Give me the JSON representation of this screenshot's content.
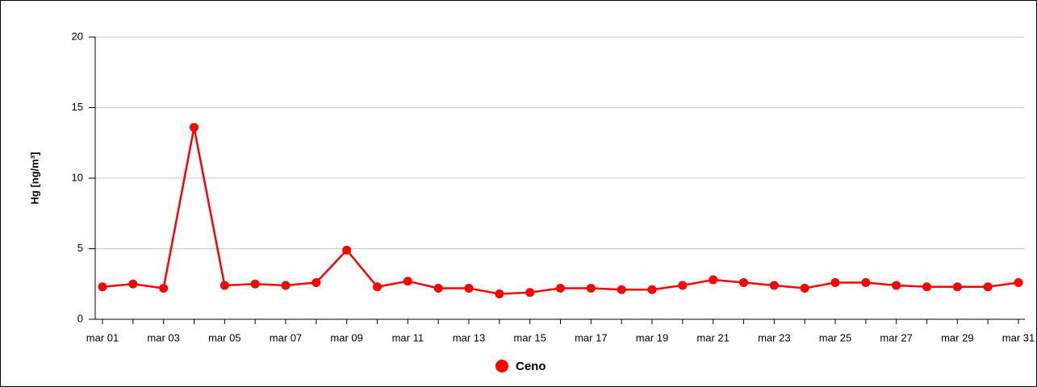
{
  "chart_data": {
    "type": "line",
    "y_label": "Hg [ng/m³]",
    "categories": [
      "mar 01",
      null,
      "mar 03",
      null,
      "mar 05",
      null,
      "mar 07",
      null,
      "mar 09",
      null,
      "mar 11",
      null,
      "mar 13",
      null,
      "mar 15",
      null,
      "mar 17",
      null,
      "mar 19",
      null,
      "mar 21",
      null,
      "mar 23",
      null,
      "mar 25",
      null,
      "mar 27",
      null,
      "mar 29",
      null,
      "mar 31"
    ],
    "series": [
      {
        "name": "Ceno",
        "color": "#ff0000",
        "values": [
          2.3,
          2.5,
          2.2,
          13.6,
          2.4,
          2.5,
          2.4,
          2.6,
          4.9,
          2.3,
          2.7,
          2.2,
          2.2,
          1.8,
          1.9,
          2.2,
          2.2,
          2.1,
          2.1,
          2.4,
          2.8,
          2.6,
          2.4,
          2.2,
          2.6,
          2.6,
          2.4,
          2.3,
          2.3,
          2.3,
          2.6
        ]
      }
    ],
    "ylim": [
      0,
      20
    ],
    "yticks": [
      0,
      5,
      10,
      15,
      20
    ],
    "grid": true,
    "legend": "bottom"
  }
}
